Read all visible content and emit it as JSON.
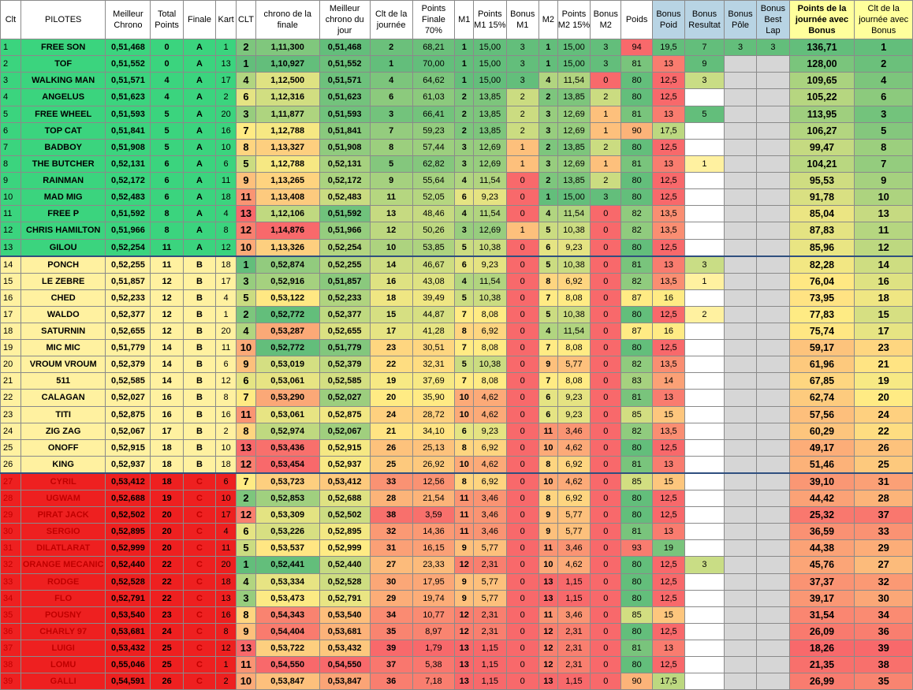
{
  "headers": [
    "Clt",
    "PILOTES",
    "Meilleur Chrono",
    "Total Points",
    "Finale",
    "Kart",
    "CLT",
    "chrono de la finale",
    "Meilleur chrono du jour",
    "Clt de la journée",
    "Points Finale 70%",
    "M1",
    "Points M1 15%",
    "Bonus M1",
    "M2",
    "Points M2 15%",
    "Bonus M2",
    "Poids",
    "Bonus Poid",
    "Bonus Resultat",
    "Bonus Pôle",
    "Bonus Best Lap",
    "Points de la journée avec Bonus",
    "Clt de la journée avec Bonus"
  ],
  "rows": [
    {
      "clt": "1",
      "pilote": "FREE SON",
      "chrono": "0,51,468",
      "tp": "0",
      "fin": "A",
      "kart": "1",
      "clt2": "2",
      "chf": "1,11,300",
      "mcj": "0,51,468",
      "cltj": "2",
      "pf": "68,21",
      "m1": "1",
      "pm1": "15,00",
      "bm1": "3",
      "m2": "1",
      "pm2": "15,00",
      "bm2": "3",
      "poids": "94",
      "bp": "19,5",
      "br": "7",
      "bpole": "3",
      "bbl": "3",
      "pts": "136,71",
      "cltb": "1"
    },
    {
      "clt": "2",
      "pilote": "TOF",
      "chrono": "0,51,552",
      "tp": "0",
      "fin": "A",
      "kart": "13",
      "clt2": "1",
      "chf": "1,10,927",
      "mcj": "0,51,552",
      "cltj": "1",
      "pf": "70,00",
      "m1": "1",
      "pm1": "15,00",
      "bm1": "3",
      "m2": "1",
      "pm2": "15,00",
      "bm2": "3",
      "poids": "81",
      "bp": "13",
      "br": "9",
      "bpole": "",
      "bbl": "",
      "pts": "128,00",
      "cltb": "2"
    },
    {
      "clt": "3",
      "pilote": "WALKING MAN",
      "chrono": "0,51,571",
      "tp": "4",
      "fin": "A",
      "kart": "17",
      "clt2": "4",
      "chf": "1,12,500",
      "mcj": "0,51,571",
      "cltj": "4",
      "pf": "64,62",
      "m1": "1",
      "pm1": "15,00",
      "bm1": "3",
      "m2": "4",
      "pm2": "11,54",
      "bm2": "0",
      "poids": "80",
      "bp": "12,5",
      "br": "3",
      "bpole": "",
      "bbl": "",
      "pts": "109,65",
      "cltb": "4"
    },
    {
      "clt": "4",
      "pilote": "ANGELUS",
      "chrono": "0,51,623",
      "tp": "4",
      "fin": "A",
      "kart": "2",
      "clt2": "6",
      "chf": "1,12,316",
      "mcj": "0,51,623",
      "cltj": "6",
      "pf": "61,03",
      "m1": "2",
      "pm1": "13,85",
      "bm1": "2",
      "m2": "2",
      "pm2": "13,85",
      "bm2": "2",
      "poids": "80",
      "bp": "12,5",
      "br": "",
      "bpole": "",
      "bbl": "",
      "pts": "105,22",
      "cltb": "6"
    },
    {
      "clt": "5",
      "pilote": "FREE WHEEL",
      "chrono": "0,51,593",
      "tp": "5",
      "fin": "A",
      "kart": "20",
      "clt2": "3",
      "chf": "1,11,877",
      "mcj": "0,51,593",
      "cltj": "3",
      "pf": "66,41",
      "m1": "2",
      "pm1": "13,85",
      "bm1": "2",
      "m2": "3",
      "pm2": "12,69",
      "bm2": "1",
      "poids": "81",
      "bp": "13",
      "br": "5",
      "bpole": "",
      "bbl": "",
      "pts": "113,95",
      "cltb": "3"
    },
    {
      "clt": "6",
      "pilote": "TOP CAT",
      "chrono": "0,51,841",
      "tp": "5",
      "fin": "A",
      "kart": "16",
      "clt2": "7",
      "chf": "1,12,788",
      "mcj": "0,51,841",
      "cltj": "7",
      "pf": "59,23",
      "m1": "2",
      "pm1": "13,85",
      "bm1": "2",
      "m2": "3",
      "pm2": "12,69",
      "bm2": "1",
      "poids": "90",
      "bp": "17,5",
      "br": "",
      "bpole": "",
      "bbl": "",
      "pts": "106,27",
      "cltb": "5"
    },
    {
      "clt": "7",
      "pilote": "BADBOY",
      "chrono": "0,51,908",
      "tp": "5",
      "fin": "A",
      "kart": "10",
      "clt2": "8",
      "chf": "1,13,327",
      "mcj": "0,51,908",
      "cltj": "8",
      "pf": "57,44",
      "m1": "3",
      "pm1": "12,69",
      "bm1": "1",
      "m2": "2",
      "pm2": "13,85",
      "bm2": "2",
      "poids": "80",
      "bp": "12,5",
      "br": "",
      "bpole": "",
      "bbl": "",
      "pts": "99,47",
      "cltb": "8"
    },
    {
      "clt": "8",
      "pilote": "THE BUTCHER",
      "chrono": "0,52,131",
      "tp": "6",
      "fin": "A",
      "kart": "6",
      "clt2": "5",
      "chf": "1,12,788",
      "mcj": "0,52,131",
      "cltj": "5",
      "pf": "62,82",
      "m1": "3",
      "pm1": "12,69",
      "bm1": "1",
      "m2": "3",
      "pm2": "12,69",
      "bm2": "1",
      "poids": "81",
      "bp": "13",
      "br": "1",
      "bpole": "",
      "bbl": "",
      "pts": "104,21",
      "cltb": "7"
    },
    {
      "clt": "9",
      "pilote": "RAINMAN",
      "chrono": "0,52,172",
      "tp": "6",
      "fin": "A",
      "kart": "11",
      "clt2": "9",
      "chf": "1,13,265",
      "mcj": "0,52,172",
      "cltj": "9",
      "pf": "55,64",
      "m1": "4",
      "pm1": "11,54",
      "bm1": "0",
      "m2": "2",
      "pm2": "13,85",
      "bm2": "2",
      "poids": "80",
      "bp": "12,5",
      "br": "",
      "bpole": "",
      "bbl": "",
      "pts": "95,53",
      "cltb": "9"
    },
    {
      "clt": "10",
      "pilote": "MAD MIG",
      "chrono": "0,52,483",
      "tp": "6",
      "fin": "A",
      "kart": "18",
      "clt2": "11",
      "chf": "1,13,408",
      "mcj": "0,52,483",
      "cltj": "11",
      "pf": "52,05",
      "m1": "6",
      "pm1": "9,23",
      "bm1": "0",
      "m2": "1",
      "pm2": "15,00",
      "bm2": "3",
      "poids": "80",
      "bp": "12,5",
      "br": "",
      "bpole": "",
      "bbl": "",
      "pts": "91,78",
      "cltb": "10"
    },
    {
      "clt": "11",
      "pilote": "FREE P",
      "chrono": "0,51,592",
      "tp": "8",
      "fin": "A",
      "kart": "4",
      "clt2": "13",
      "chf": "1,12,106",
      "mcj": "0,51,592",
      "cltj": "13",
      "pf": "48,46",
      "m1": "4",
      "pm1": "11,54",
      "bm1": "0",
      "m2": "4",
      "pm2": "11,54",
      "bm2": "0",
      "poids": "82",
      "bp": "13,5",
      "br": "",
      "bpole": "",
      "bbl": "",
      "pts": "85,04",
      "cltb": "13"
    },
    {
      "clt": "12",
      "pilote": "CHRIS HAMILTON",
      "chrono": "0,51,966",
      "tp": "8",
      "fin": "A",
      "kart": "8",
      "clt2": "12",
      "chf": "1,14,876",
      "mcj": "0,51,966",
      "cltj": "12",
      "pf": "50,26",
      "m1": "3",
      "pm1": "12,69",
      "bm1": "1",
      "m2": "5",
      "pm2": "10,38",
      "bm2": "0",
      "poids": "82",
      "bp": "13,5",
      "br": "",
      "bpole": "",
      "bbl": "",
      "pts": "87,83",
      "cltb": "11"
    },
    {
      "clt": "13",
      "pilote": "GILOU",
      "chrono": "0,52,254",
      "tp": "11",
      "fin": "A",
      "kart": "12",
      "clt2": "10",
      "chf": "1,13,326",
      "mcj": "0,52,254",
      "cltj": "10",
      "pf": "53,85",
      "m1": "5",
      "pm1": "10,38",
      "bm1": "0",
      "m2": "6",
      "pm2": "9,23",
      "bm2": "0",
      "poids": "80",
      "bp": "12,5",
      "br": "",
      "bpole": "",
      "bbl": "",
      "pts": "85,96",
      "cltb": "12"
    },
    {
      "clt": "14",
      "pilote": "PONCH",
      "chrono": "0,52,255",
      "tp": "11",
      "fin": "B",
      "kart": "18",
      "clt2": "1",
      "chf": "0,52,874",
      "mcj": "0,52,255",
      "cltj": "14",
      "pf": "46,67",
      "m1": "6",
      "pm1": "9,23",
      "bm1": "0",
      "m2": "5",
      "pm2": "10,38",
      "bm2": "0",
      "poids": "81",
      "bp": "13",
      "br": "3",
      "bpole": "",
      "bbl": "",
      "pts": "82,28",
      "cltb": "14"
    },
    {
      "clt": "15",
      "pilote": "LE ZEBRE",
      "chrono": "0,51,857",
      "tp": "12",
      "fin": "B",
      "kart": "17",
      "clt2": "3",
      "chf": "0,52,916",
      "mcj": "0,51,857",
      "cltj": "16",
      "pf": "43,08",
      "m1": "4",
      "pm1": "11,54",
      "bm1": "0",
      "m2": "8",
      "pm2": "6,92",
      "bm2": "0",
      "poids": "82",
      "bp": "13,5",
      "br": "1",
      "bpole": "",
      "bbl": "",
      "pts": "76,04",
      "cltb": "16"
    },
    {
      "clt": "16",
      "pilote": "CHED",
      "chrono": "0,52,233",
      "tp": "12",
      "fin": "B",
      "kart": "4",
      "clt2": "5",
      "chf": "0,53,122",
      "mcj": "0,52,233",
      "cltj": "18",
      "pf": "39,49",
      "m1": "5",
      "pm1": "10,38",
      "bm1": "0",
      "m2": "7",
      "pm2": "8,08",
      "bm2": "0",
      "poids": "87",
      "bp": "16",
      "br": "",
      "bpole": "",
      "bbl": "",
      "pts": "73,95",
      "cltb": "18"
    },
    {
      "clt": "17",
      "pilote": "WALDO",
      "chrono": "0,52,377",
      "tp": "12",
      "fin": "B",
      "kart": "1",
      "clt2": "2",
      "chf": "0,52,772",
      "mcj": "0,52,377",
      "cltj": "15",
      "pf": "44,87",
      "m1": "7",
      "pm1": "8,08",
      "bm1": "0",
      "m2": "5",
      "pm2": "10,38",
      "bm2": "0",
      "poids": "80",
      "bp": "12,5",
      "br": "2",
      "bpole": "",
      "bbl": "",
      "pts": "77,83",
      "cltb": "15"
    },
    {
      "clt": "18",
      "pilote": "SATURNIN",
      "chrono": "0,52,655",
      "tp": "12",
      "fin": "B",
      "kart": "20",
      "clt2": "4",
      "chf": "0,53,287",
      "mcj": "0,52,655",
      "cltj": "17",
      "pf": "41,28",
      "m1": "8",
      "pm1": "6,92",
      "bm1": "0",
      "m2": "4",
      "pm2": "11,54",
      "bm2": "0",
      "poids": "87",
      "bp": "16",
      "br": "",
      "bpole": "",
      "bbl": "",
      "pts": "75,74",
      "cltb": "17"
    },
    {
      "clt": "19",
      "pilote": "MIC MIC",
      "chrono": "0,51,779",
      "tp": "14",
      "fin": "B",
      "kart": "11",
      "clt2": "10",
      "chf": "0,52,772",
      "mcj": "0,51,779",
      "cltj": "23",
      "pf": "30,51",
      "m1": "7",
      "pm1": "8,08",
      "bm1": "0",
      "m2": "7",
      "pm2": "8,08",
      "bm2": "0",
      "poids": "80",
      "bp": "12,5",
      "br": "",
      "bpole": "",
      "bbl": "",
      "pts": "59,17",
      "cltb": "23"
    },
    {
      "clt": "20",
      "pilote": "VROUM VROUM",
      "chrono": "0,52,379",
      "tp": "14",
      "fin": "B",
      "kart": "6",
      "clt2": "9",
      "chf": "0,53,019",
      "mcj": "0,52,379",
      "cltj": "22",
      "pf": "32,31",
      "m1": "5",
      "pm1": "10,38",
      "bm1": "0",
      "m2": "9",
      "pm2": "5,77",
      "bm2": "0",
      "poids": "82",
      "bp": "13,5",
      "br": "",
      "bpole": "",
      "bbl": "",
      "pts": "61,96",
      "cltb": "21"
    },
    {
      "clt": "21",
      "pilote": "511",
      "chrono": "0,52,585",
      "tp": "14",
      "fin": "B",
      "kart": "12",
      "clt2": "6",
      "chf": "0,53,061",
      "mcj": "0,52,585",
      "cltj": "19",
      "pf": "37,69",
      "m1": "7",
      "pm1": "8,08",
      "bm1": "0",
      "m2": "7",
      "pm2": "8,08",
      "bm2": "0",
      "poids": "83",
      "bp": "14",
      "br": "",
      "bpole": "",
      "bbl": "",
      "pts": "67,85",
      "cltb": "19"
    },
    {
      "clt": "22",
      "pilote": "CALAGAN",
      "chrono": "0,52,027",
      "tp": "16",
      "fin": "B",
      "kart": "8",
      "clt2": "7",
      "chf": "0,53,290",
      "mcj": "0,52,027",
      "cltj": "20",
      "pf": "35,90",
      "m1": "10",
      "pm1": "4,62",
      "bm1": "0",
      "m2": "6",
      "pm2": "9,23",
      "bm2": "0",
      "poids": "81",
      "bp": "13",
      "br": "",
      "bpole": "",
      "bbl": "",
      "pts": "62,74",
      "cltb": "20"
    },
    {
      "clt": "23",
      "pilote": "TITI",
      "chrono": "0,52,875",
      "tp": "16",
      "fin": "B",
      "kart": "16",
      "clt2": "11",
      "chf": "0,53,061",
      "mcj": "0,52,875",
      "cltj": "24",
      "pf": "28,72",
      "m1": "10",
      "pm1": "4,62",
      "bm1": "0",
      "m2": "6",
      "pm2": "9,23",
      "bm2": "0",
      "poids": "85",
      "bp": "15",
      "br": "",
      "bpole": "",
      "bbl": "",
      "pts": "57,56",
      "cltb": "24"
    },
    {
      "clt": "24",
      "pilote": "ZIG ZAG",
      "chrono": "0,52,067",
      "tp": "17",
      "fin": "B",
      "kart": "2",
      "clt2": "8",
      "chf": "0,52,974",
      "mcj": "0,52,067",
      "cltj": "21",
      "pf": "34,10",
      "m1": "6",
      "pm1": "9,23",
      "bm1": "0",
      "m2": "11",
      "pm2": "3,46",
      "bm2": "0",
      "poids": "82",
      "bp": "13,5",
      "br": "",
      "bpole": "",
      "bbl": "",
      "pts": "60,29",
      "cltb": "22"
    },
    {
      "clt": "25",
      "pilote": "ONOFF",
      "chrono": "0,52,915",
      "tp": "18",
      "fin": "B",
      "kart": "10",
      "clt2": "13",
      "chf": "0,53,436",
      "mcj": "0,52,915",
      "cltj": "26",
      "pf": "25,13",
      "m1": "8",
      "pm1": "6,92",
      "bm1": "0",
      "m2": "10",
      "pm2": "4,62",
      "bm2": "0",
      "poids": "80",
      "bp": "12,5",
      "br": "",
      "bpole": "",
      "bbl": "",
      "pts": "49,17",
      "cltb": "26"
    },
    {
      "clt": "26",
      "pilote": "KING",
      "chrono": "0,52,937",
      "tp": "18",
      "fin": "B",
      "kart": "18",
      "clt2": "12",
      "chf": "0,53,454",
      "mcj": "0,52,937",
      "cltj": "25",
      "pf": "26,92",
      "m1": "10",
      "pm1": "4,62",
      "bm1": "0",
      "m2": "8",
      "pm2": "6,92",
      "bm2": "0",
      "poids": "81",
      "bp": "13",
      "br": "",
      "bpole": "",
      "bbl": "",
      "pts": "51,46",
      "cltb": "25"
    },
    {
      "clt": "27",
      "pilote": "CYRIL",
      "chrono": "0,53,412",
      "tp": "18",
      "fin": "C",
      "kart": "6",
      "clt2": "7",
      "chf": "0,53,723",
      "mcj": "0,53,412",
      "cltj": "33",
      "pf": "12,56",
      "m1": "8",
      "pm1": "6,92",
      "bm1": "0",
      "m2": "10",
      "pm2": "4,62",
      "bm2": "0",
      "poids": "85",
      "bp": "15",
      "br": "",
      "bpole": "",
      "bbl": "",
      "pts": "39,10",
      "cltb": "31"
    },
    {
      "clt": "28",
      "pilote": "UGWAM",
      "chrono": "0,52,688",
      "tp": "19",
      "fin": "C",
      "kart": "10",
      "clt2": "2",
      "chf": "0,52,853",
      "mcj": "0,52,688",
      "cltj": "28",
      "pf": "21,54",
      "m1": "11",
      "pm1": "3,46",
      "bm1": "0",
      "m2": "8",
      "pm2": "6,92",
      "bm2": "0",
      "poids": "80",
      "bp": "12,5",
      "br": "",
      "bpole": "",
      "bbl": "",
      "pts": "44,42",
      "cltb": "28"
    },
    {
      "clt": "29",
      "pilote": "PIRAT JACK",
      "chrono": "0,52,502",
      "tp": "20",
      "fin": "C",
      "kart": "17",
      "clt2": "12",
      "chf": "0,53,309",
      "mcj": "0,52,502",
      "cltj": "38",
      "pf": "3,59",
      "m1": "11",
      "pm1": "3,46",
      "bm1": "0",
      "m2": "9",
      "pm2": "5,77",
      "bm2": "0",
      "poids": "80",
      "bp": "12,5",
      "br": "",
      "bpole": "",
      "bbl": "",
      "pts": "25,32",
      "cltb": "37"
    },
    {
      "clt": "30",
      "pilote": "SERGIO",
      "chrono": "0,52,895",
      "tp": "20",
      "fin": "C",
      "kart": "4",
      "clt2": "6",
      "chf": "0,53,226",
      "mcj": "0,52,895",
      "cltj": "32",
      "pf": "14,36",
      "m1": "11",
      "pm1": "3,46",
      "bm1": "0",
      "m2": "9",
      "pm2": "5,77",
      "bm2": "0",
      "poids": "81",
      "bp": "13",
      "br": "",
      "bpole": "",
      "bbl": "",
      "pts": "36,59",
      "cltb": "33"
    },
    {
      "clt": "31",
      "pilote": "DILATLARAT",
      "chrono": "0,52,999",
      "tp": "20",
      "fin": "C",
      "kart": "11",
      "clt2": "5",
      "chf": "0,53,537",
      "mcj": "0,52,999",
      "cltj": "31",
      "pf": "16,15",
      "m1": "9",
      "pm1": "5,77",
      "bm1": "0",
      "m2": "11",
      "pm2": "3,46",
      "bm2": "0",
      "poids": "93",
      "bp": "19",
      "br": "",
      "bpole": "",
      "bbl": "",
      "pts": "44,38",
      "cltb": "29"
    },
    {
      "clt": "32",
      "pilote": "ORANGE MECANIC",
      "chrono": "0,52,440",
      "tp": "22",
      "fin": "C",
      "kart": "20",
      "clt2": "1",
      "chf": "0,52,441",
      "mcj": "0,52,440",
      "cltj": "27",
      "pf": "23,33",
      "m1": "12",
      "pm1": "2,31",
      "bm1": "0",
      "m2": "10",
      "pm2": "4,62",
      "bm2": "0",
      "poids": "80",
      "bp": "12,5",
      "br": "3",
      "bpole": "",
      "bbl": "",
      "pts": "45,76",
      "cltb": "27"
    },
    {
      "clt": "33",
      "pilote": "RODGE",
      "chrono": "0,52,528",
      "tp": "22",
      "fin": "C",
      "kart": "18",
      "clt2": "4",
      "chf": "0,53,334",
      "mcj": "0,52,528",
      "cltj": "30",
      "pf": "17,95",
      "m1": "9",
      "pm1": "5,77",
      "bm1": "0",
      "m2": "13",
      "pm2": "1,15",
      "bm2": "0",
      "poids": "80",
      "bp": "12,5",
      "br": "",
      "bpole": "",
      "bbl": "",
      "pts": "37,37",
      "cltb": "32"
    },
    {
      "clt": "34",
      "pilote": "FLO",
      "chrono": "0,52,791",
      "tp": "22",
      "fin": "C",
      "kart": "13",
      "clt2": "3",
      "chf": "0,53,473",
      "mcj": "0,52,791",
      "cltj": "29",
      "pf": "19,74",
      "m1": "9",
      "pm1": "5,77",
      "bm1": "0",
      "m2": "13",
      "pm2": "1,15",
      "bm2": "0",
      "poids": "80",
      "bp": "12,5",
      "br": "",
      "bpole": "",
      "bbl": "",
      "pts": "39,17",
      "cltb": "30"
    },
    {
      "clt": "35",
      "pilote": "POUSNY",
      "chrono": "0,53,540",
      "tp": "23",
      "fin": "C",
      "kart": "16",
      "clt2": "8",
      "chf": "0,54,343",
      "mcj": "0,53,540",
      "cltj": "34",
      "pf": "10,77",
      "m1": "12",
      "pm1": "2,31",
      "bm1": "0",
      "m2": "11",
      "pm2": "3,46",
      "bm2": "0",
      "poids": "85",
      "bp": "15",
      "br": "",
      "bpole": "",
      "bbl": "",
      "pts": "31,54",
      "cltb": "34"
    },
    {
      "clt": "36",
      "pilote": "CHARLY 97",
      "chrono": "0,53,681",
      "tp": "24",
      "fin": "C",
      "kart": "8",
      "clt2": "9",
      "chf": "0,54,404",
      "mcj": "0,53,681",
      "cltj": "35",
      "pf": "8,97",
      "m1": "12",
      "pm1": "2,31",
      "bm1": "0",
      "m2": "12",
      "pm2": "2,31",
      "bm2": "0",
      "poids": "80",
      "bp": "12,5",
      "br": "",
      "bpole": "",
      "bbl": "",
      "pts": "26,09",
      "cltb": "36"
    },
    {
      "clt": "37",
      "pilote": "LUIGI",
      "chrono": "0,53,432",
      "tp": "25",
      "fin": "C",
      "kart": "12",
      "clt2": "13",
      "chf": "0,53,722",
      "mcj": "0,53,432",
      "cltj": "39",
      "pf": "1,79",
      "m1": "13",
      "pm1": "1,15",
      "bm1": "0",
      "m2": "12",
      "pm2": "2,31",
      "bm2": "0",
      "poids": "81",
      "bp": "13",
      "br": "",
      "bpole": "",
      "bbl": "",
      "pts": "18,26",
      "cltb": "39"
    },
    {
      "clt": "38",
      "pilote": "LOMU",
      "chrono": "0,55,046",
      "tp": "25",
      "fin": "C",
      "kart": "1",
      "clt2": "11",
      "chf": "0,54,550",
      "mcj": "0,54,550",
      "cltj": "37",
      "pf": "5,38",
      "m1": "13",
      "pm1": "1,15",
      "bm1": "0",
      "m2": "12",
      "pm2": "2,31",
      "bm2": "0",
      "poids": "80",
      "bp": "12,5",
      "br": "",
      "bpole": "",
      "bbl": "",
      "pts": "21,35",
      "cltb": "38"
    },
    {
      "clt": "39",
      "pilote": "GALLI",
      "chrono": "0,54,591",
      "tp": "26",
      "fin": "C",
      "kart": "2",
      "clt2": "10",
      "chf": "0,53,847",
      "mcj": "0,53,847",
      "cltj": "36",
      "pf": "7,18",
      "m1": "13",
      "pm1": "1,15",
      "bm1": "0",
      "m2": "13",
      "pm2": "1,15",
      "bm2": "0",
      "poids": "90",
      "bp": "17,5",
      "br": "",
      "bpole": "",
      "bbl": "",
      "pts": "26,99",
      "cltb": "35"
    }
  ]
}
